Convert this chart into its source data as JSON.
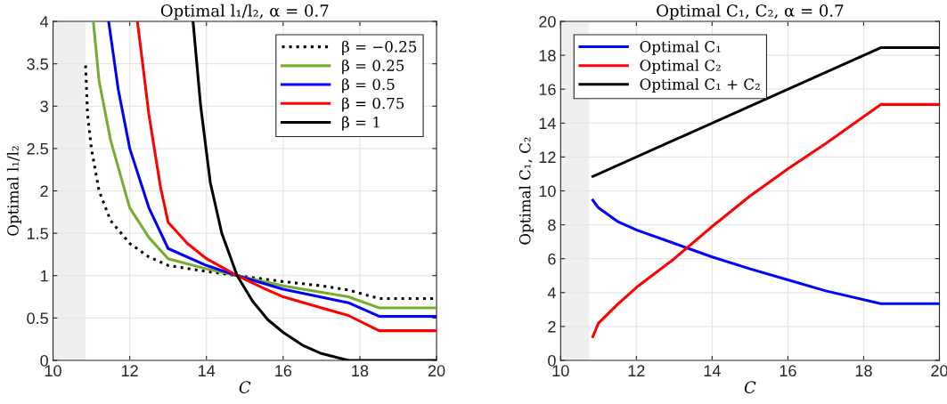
{
  "chart_data": [
    {
      "type": "line",
      "title": "Optimal l₁/l₂, α = 0.7",
      "xlabel": "C",
      "ylabel": "Optimal l₁/l₂",
      "xlim": [
        10,
        20
      ],
      "ylim": [
        0,
        4
      ],
      "xticks": [
        10,
        12,
        14,
        16,
        18,
        20
      ],
      "yticks": [
        0,
        0.5,
        1,
        1.5,
        2,
        2.5,
        3,
        3.5,
        4
      ],
      "grid": true,
      "legend": "top right",
      "bands": [
        {
          "axis": "x",
          "from": 10,
          "to": 10.85,
          "color": "#efefef"
        }
      ],
      "series": [
        {
          "name": "β = −0.25",
          "color": "#000000",
          "line_style": "dotted",
          "x": [
            10.85,
            10.9,
            11,
            11.2,
            11.5,
            12,
            12.5,
            13,
            14,
            14.8,
            15.5,
            16,
            17,
            17.7,
            18.5,
            20
          ],
          "values": [
            3.48,
            2.9,
            2.5,
            2.0,
            1.65,
            1.38,
            1.22,
            1.12,
            1.05,
            1.0,
            0.96,
            0.93,
            0.88,
            0.83,
            0.73,
            0.73
          ]
        },
        {
          "name": "β = 0.25",
          "color": "#77ac30",
          "x": [
            11.05,
            11.2,
            11.5,
            12,
            12.5,
            13,
            14,
            14.8,
            16,
            17.7,
            18.5,
            20
          ],
          "values": [
            4,
            3.3,
            2.6,
            1.8,
            1.45,
            1.2,
            1.08,
            1.0,
            0.88,
            0.75,
            0.62,
            0.62
          ]
        },
        {
          "name": "β = 0.5",
          "color": "#0000ff",
          "x": [
            11.45,
            11.7,
            12,
            12.5,
            13,
            14,
            14.8,
            16,
            17.7,
            18.5,
            20
          ],
          "values": [
            4,
            3.2,
            2.5,
            1.8,
            1.32,
            1.12,
            1.0,
            0.84,
            0.68,
            0.52,
            0.52
          ]
        },
        {
          "name": "β = 0.75",
          "color": "#ff0000",
          "x": [
            12.2,
            12.5,
            12.8,
            13,
            13.5,
            14,
            14.8,
            15.5,
            16,
            17,
            17.7,
            18.5,
            20
          ],
          "values": [
            4,
            2.9,
            2.05,
            1.63,
            1.38,
            1.2,
            1.0,
            0.85,
            0.75,
            0.62,
            0.53,
            0.35,
            0.35
          ]
        },
        {
          "name": "β = 1",
          "color": "#000000",
          "x": [
            13.65,
            13.85,
            14.1,
            14.4,
            14.8,
            15.2,
            15.6,
            16,
            16.5,
            17,
            17.7,
            20
          ],
          "values": [
            4,
            3.0,
            2.1,
            1.5,
            1.0,
            0.7,
            0.48,
            0.33,
            0.18,
            0.08,
            0,
            0
          ]
        }
      ]
    },
    {
      "type": "line",
      "title": "Optimal C₁, C₂, α = 0.7",
      "xlabel": "C",
      "ylabel": "Optimal C₁, C₂",
      "xlim": [
        10,
        20
      ],
      "ylim": [
        0,
        20
      ],
      "xticks": [
        10,
        12,
        14,
        16,
        18,
        20
      ],
      "yticks": [
        0,
        2,
        4,
        6,
        8,
        10,
        12,
        14,
        16,
        18,
        20
      ],
      "grid": true,
      "legend": "top left",
      "bands": [
        {
          "axis": "x",
          "from": 10,
          "to": 10.75,
          "color": "#efefef"
        }
      ],
      "series": [
        {
          "name": "Optimal C₁",
          "color": "#0000ff",
          "x": [
            10.85,
            11,
            11.5,
            12,
            13,
            14,
            15,
            16,
            17,
            18.45,
            20
          ],
          "values": [
            9.45,
            9.0,
            8.2,
            7.7,
            6.9,
            6.1,
            5.4,
            4.75,
            4.1,
            3.35,
            3.35
          ]
        },
        {
          "name": "Optimal C₂",
          "color": "#ff0000",
          "x": [
            10.85,
            11,
            11.5,
            12,
            13,
            14,
            15,
            16,
            17,
            18.45,
            20
          ],
          "values": [
            1.4,
            2.2,
            3.3,
            4.3,
            6.0,
            7.9,
            9.7,
            11.3,
            12.8,
            15.1,
            15.1
          ]
        },
        {
          "name": "Optimal C₁ + C₂",
          "color": "#000000",
          "x": [
            10.85,
            18.45,
            20
          ],
          "values": [
            10.85,
            18.45,
            18.45
          ]
        }
      ]
    }
  ]
}
